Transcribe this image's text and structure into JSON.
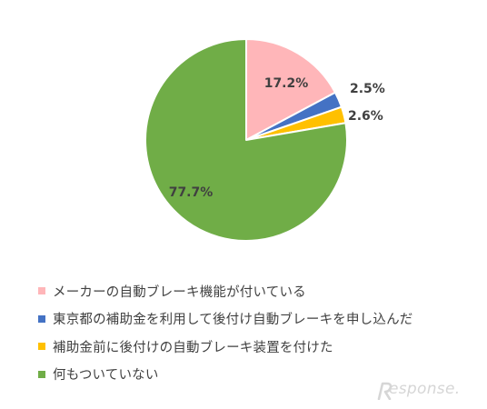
{
  "chart_data": {
    "type": "pie",
    "start_angle": "12 o'clock",
    "direction": "clockwise",
    "categories": [
      "メーカーの自動ブレーキ機能が付いている",
      "東京都の補助金を利用して後付け自動ブレーキを申し込んだ",
      "補助金前に後付けの自動ブレーキ装置を付けた",
      "何もついていない"
    ],
    "values": [
      17.2,
      2.5,
      2.6,
      77.7
    ],
    "value_labels": [
      "17.2%",
      "2.5%",
      "2.6%",
      "77.7%"
    ],
    "colors": [
      "#ffb6b9",
      "#4472c4",
      "#ffc000",
      "#70ad47"
    ],
    "legend_position": "bottom",
    "title": ""
  },
  "watermark": {
    "text": "esponse."
  }
}
